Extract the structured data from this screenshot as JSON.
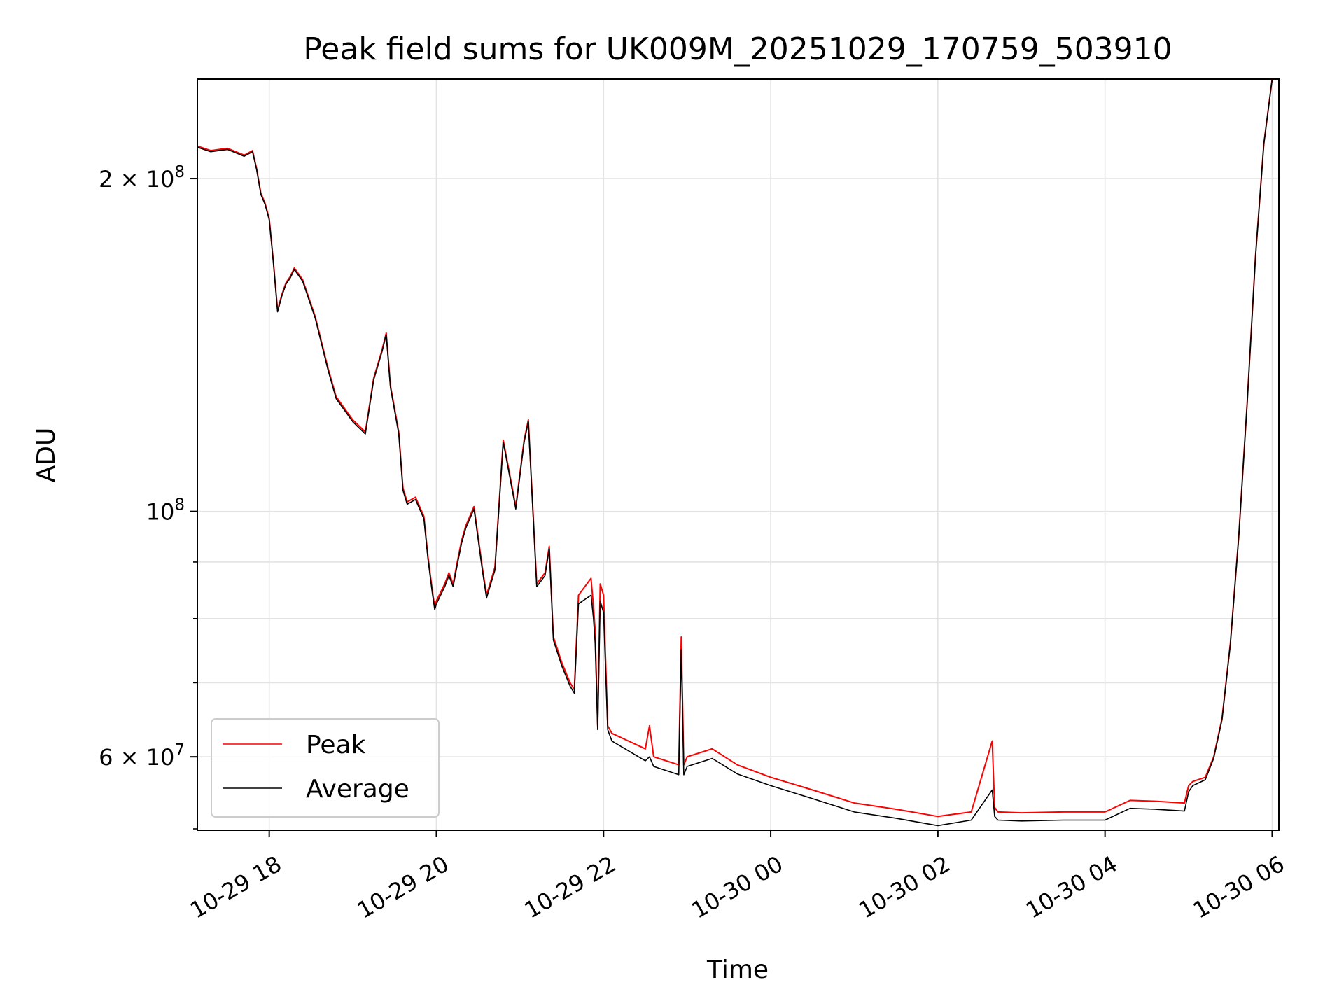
{
  "chart_data": {
    "type": "line",
    "title": "Peak field sums for UK009M_20251029_170759_503910",
    "xlabel": "Time",
    "ylabel": "ADU",
    "yscale": "log",
    "grid": true,
    "legend_position": "lower-left",
    "x_unit": "hours since 2025-10-29 00:00",
    "xlim": [
      17.14,
      30.08
    ],
    "ylim": [
      51500000,
      246000000
    ],
    "x_ticks": [
      {
        "value": 18,
        "label": "10-29 18"
      },
      {
        "value": 20,
        "label": "10-29 20"
      },
      {
        "value": 22,
        "label": "10-29 22"
      },
      {
        "value": 24,
        "label": "10-30 00"
      },
      {
        "value": 26,
        "label": "10-30 02"
      },
      {
        "value": 28,
        "label": "10-30 04"
      },
      {
        "value": 30,
        "label": "10-30 06"
      }
    ],
    "y_major_ticks": [
      {
        "value": 200000000,
        "mantissa": "2",
        "exponent": "8"
      },
      {
        "value": 100000000,
        "mantissa": "",
        "exponent": "8"
      },
      {
        "value": 60000000,
        "mantissa": "6",
        "exponent": "7"
      }
    ],
    "y_minor_ticks": [
      90000000,
      80000000,
      70000000,
      60000000
    ],
    "series": [
      {
        "name": "Peak",
        "color": "#ff0000",
        "x": [
          17.14,
          17.3,
          17.5,
          17.7,
          17.8,
          17.85,
          17.9,
          17.95,
          18.0,
          18.05,
          18.1,
          18.15,
          18.2,
          18.25,
          18.3,
          18.4,
          18.55,
          18.7,
          18.8,
          19.0,
          19.15,
          19.25,
          19.35,
          19.4,
          19.45,
          19.55,
          19.6,
          19.65,
          19.75,
          19.85,
          19.9,
          19.95,
          19.98,
          20.0,
          20.1,
          20.15,
          20.2,
          20.25,
          20.3,
          20.35,
          20.45,
          20.55,
          20.6,
          20.7,
          20.8,
          20.95,
          21.05,
          21.1,
          21.2,
          21.3,
          21.35,
          21.4,
          21.5,
          21.6,
          21.65,
          21.7,
          21.85,
          21.88,
          21.9,
          21.93,
          21.96,
          22.0,
          22.05,
          22.1,
          22.5,
          22.55,
          22.6,
          22.9,
          22.93,
          22.96,
          23.0,
          23.3,
          23.6,
          24.0,
          24.5,
          25.0,
          25.5,
          26.0,
          26.4,
          26.65,
          26.68,
          26.72,
          27.0,
          27.5,
          28.0,
          28.3,
          28.6,
          28.95,
          29.0,
          29.05,
          29.2,
          29.3,
          29.4,
          29.5,
          29.6,
          29.7,
          29.8,
          29.9,
          30.0
        ],
        "y": [
          214000000,
          212000000,
          213000000,
          210000000,
          212000000,
          204000000,
          194000000,
          190000000,
          184000000,
          168000000,
          152000000,
          157000000,
          161000000,
          163000000,
          166000000,
          162000000,
          150000000,
          135000000,
          127000000,
          121000000,
          118000000,
          132000000,
          140000000,
          145000000,
          130000000,
          118000000,
          105000000,
          102000000,
          103000000,
          99000000,
          91000000,
          85000000,
          82000000,
          83000000,
          86000000,
          88000000,
          86000000,
          90000000,
          94000000,
          97000000,
          101000000,
          89000000,
          84000000,
          89000000,
          116000000,
          101000000,
          116000000,
          121000000,
          86000000,
          88000000,
          93000000,
          77000000,
          73000000,
          70000000,
          69000000,
          84000000,
          87000000,
          82000000,
          78000000,
          64000000,
          86000000,
          84000000,
          64000000,
          63000000,
          61000000,
          64000000,
          60000000,
          59000000,
          77000000,
          59000000,
          60000000,
          61000000,
          59000000,
          57500000,
          56000000,
          54500000,
          53800000,
          53000000,
          53500000,
          62000000,
          54000000,
          53500000,
          53400000,
          53500000,
          53500000,
          54800000,
          54700000,
          54500000,
          56500000,
          57000000,
          57500000,
          60000000,
          65000000,
          76000000,
          95000000,
          125000000,
          170000000,
          215000000,
          246000000
        ]
      },
      {
        "name": "Average",
        "color": "#000000",
        "x": [
          17.14,
          17.3,
          17.5,
          17.7,
          17.8,
          17.85,
          17.9,
          17.95,
          18.0,
          18.05,
          18.1,
          18.15,
          18.2,
          18.25,
          18.3,
          18.4,
          18.55,
          18.7,
          18.8,
          19.0,
          19.15,
          19.25,
          19.35,
          19.4,
          19.45,
          19.55,
          19.6,
          19.65,
          19.75,
          19.85,
          19.9,
          19.95,
          19.98,
          20.0,
          20.1,
          20.15,
          20.2,
          20.25,
          20.3,
          20.35,
          20.45,
          20.55,
          20.6,
          20.7,
          20.8,
          20.95,
          21.05,
          21.1,
          21.2,
          21.3,
          21.35,
          21.4,
          21.5,
          21.6,
          21.65,
          21.7,
          21.85,
          21.88,
          21.9,
          21.93,
          21.96,
          22.0,
          22.05,
          22.1,
          22.5,
          22.55,
          22.6,
          22.9,
          22.93,
          22.96,
          23.0,
          23.3,
          23.6,
          24.0,
          24.5,
          25.0,
          25.5,
          26.0,
          26.4,
          26.65,
          26.68,
          26.72,
          27.0,
          27.5,
          28.0,
          28.3,
          28.6,
          28.95,
          29.0,
          29.05,
          29.2,
          29.3,
          29.4,
          29.5,
          29.6,
          29.7,
          29.8,
          29.9,
          30.0
        ],
        "y": [
          213500000,
          211500000,
          212500000,
          209500000,
          211500000,
          203500000,
          193500000,
          189500000,
          183500000,
          167500000,
          151500000,
          156500000,
          160500000,
          162500000,
          165500000,
          161500000,
          149500000,
          134500000,
          126500000,
          120500000,
          117500000,
          131500000,
          139500000,
          144500000,
          129500000,
          117500000,
          104500000,
          101500000,
          102500000,
          98500000,
          90500000,
          84500000,
          81500000,
          82500000,
          85500000,
          87500000,
          85500000,
          89500000,
          93500000,
          96500000,
          100500000,
          88500000,
          83500000,
          88500000,
          115500000,
          100500000,
          115500000,
          120500000,
          85500000,
          87500000,
          92500000,
          76500000,
          72500000,
          69500000,
          68500000,
          82500000,
          84000000,
          80000000,
          76000000,
          63500000,
          83000000,
          81000000,
          63500000,
          62000000,
          59500000,
          60000000,
          58800000,
          57800000,
          75000000,
          57800000,
          58800000,
          59800000,
          57900000,
          56500000,
          55000000,
          53500000,
          52800000,
          52000000,
          52600000,
          56000000,
          53000000,
          52600000,
          52500000,
          52600000,
          52600000,
          53900000,
          53800000,
          53600000,
          55800000,
          56500000,
          57200000,
          59800000,
          64800000,
          75800000,
          94800000,
          124800000,
          169800000,
          214800000,
          245800000
        ]
      }
    ]
  }
}
